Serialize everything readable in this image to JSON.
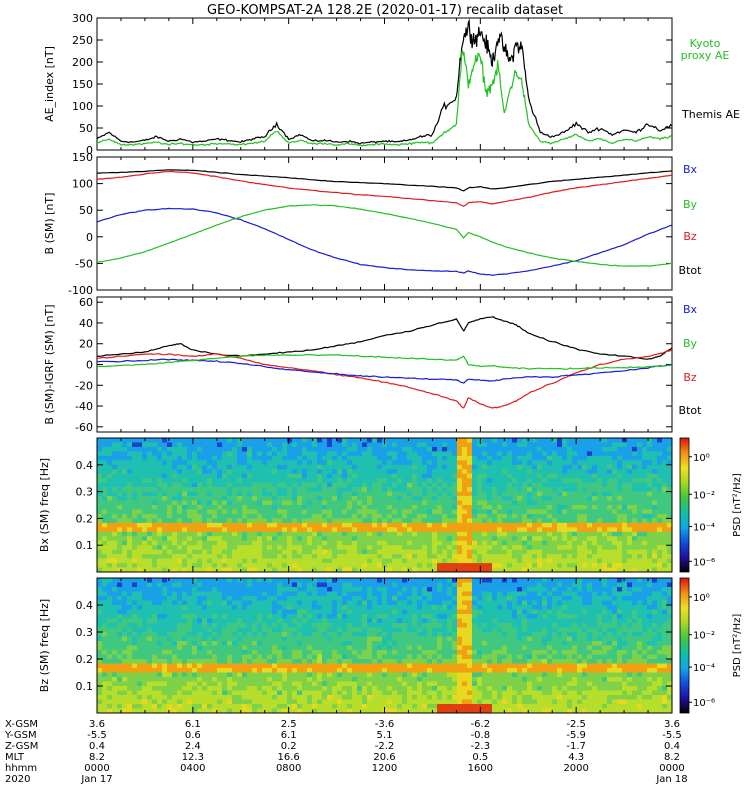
{
  "title": "GEO-KOMPSAT-2A 128.2E (2020-01-17) recalib dataset",
  "colors": {
    "black": "#000000",
    "green": "#22c022",
    "red": "#dd1c1c",
    "blue": "#1a1ad0",
    "spec_high": "#e01010",
    "spec_orange": "#f08a00",
    "spec_yellow": "#e8e020",
    "spec_green": "#50c850",
    "spec_teal": "#00a898",
    "spec_cyan": "#30b8e0"
  },
  "chart_data": [
    {
      "type": "line",
      "ylabel": "AE_index [nT]",
      "ylim": [
        0,
        300
      ],
      "yticks": [
        "300",
        "250",
        "200",
        "150",
        "100",
        "50",
        "0"
      ],
      "legend": [
        {
          "name": "Kyoto proxy AE",
          "color": "green"
        },
        {
          "name": "Themis AE",
          "color": "black"
        }
      ],
      "series": [
        {
          "name": "Themis AE",
          "color": "black",
          "x": [
            0,
            0.5,
            1,
            1.5,
            2,
            2.5,
            3,
            3.5,
            4,
            4.5,
            5,
            5.5,
            6,
            6.5,
            7,
            7.5,
            8,
            8.5,
            9,
            9.5,
            10,
            10.5,
            11,
            11.5,
            12,
            12.5,
            13,
            13.5,
            14,
            14.5,
            15,
            15.25,
            15.5,
            15.75,
            16,
            16.25,
            16.5,
            16.75,
            17,
            17.25,
            17.5,
            17.75,
            18,
            18.5,
            19,
            19.5,
            20,
            20.5,
            21,
            21.5,
            22,
            22.5,
            23,
            23.5,
            24
          ],
          "y": [
            25,
            40,
            20,
            18,
            22,
            30,
            20,
            25,
            18,
            20,
            25,
            22,
            18,
            25,
            30,
            60,
            25,
            35,
            20,
            22,
            18,
            20,
            15,
            18,
            20,
            18,
            22,
            30,
            35,
            100,
            120,
            250,
            280,
            250,
            270,
            240,
            200,
            260,
            230,
            200,
            240,
            230,
            120,
            40,
            30,
            40,
            60,
            40,
            50,
            35,
            45,
            40,
            60,
            45,
            55
          ]
        },
        {
          "name": "Kyoto proxy AE",
          "color": "green",
          "x": [
            0,
            0.5,
            1,
            1.5,
            2,
            2.5,
            3,
            3.5,
            4,
            4.5,
            5,
            5.5,
            6,
            6.5,
            7,
            7.5,
            8,
            8.5,
            9,
            9.5,
            10,
            10.5,
            11,
            11.5,
            12,
            12.5,
            13,
            13.5,
            14,
            14.5,
            15,
            15.25,
            15.5,
            15.75,
            16,
            16.25,
            16.5,
            16.75,
            17,
            17.25,
            17.5,
            17.75,
            18,
            18.5,
            19,
            19.5,
            20,
            20.5,
            21,
            21.5,
            22,
            22.5,
            23,
            23.5,
            24
          ],
          "y": [
            15,
            25,
            12,
            12,
            14,
            18,
            12,
            15,
            12,
            12,
            15,
            14,
            12,
            15,
            20,
            45,
            15,
            22,
            14,
            15,
            12,
            14,
            10,
            12,
            14,
            12,
            14,
            18,
            15,
            40,
            60,
            230,
            150,
            200,
            210,
            130,
            150,
            190,
            80,
            140,
            180,
            150,
            60,
            20,
            15,
            25,
            35,
            20,
            25,
            15,
            25,
            20,
            30,
            25,
            30
          ]
        }
      ]
    },
    {
      "type": "line",
      "ylabel": "B (SM) [nT]",
      "ylim": [
        -100,
        150
      ],
      "yticks": [
        "150",
        "100",
        "50",
        "0",
        "-50",
        "-100"
      ],
      "legend": [
        {
          "name": "Bx",
          "color": "blue"
        },
        {
          "name": "By",
          "color": "green"
        },
        {
          "name": "Bz",
          "color": "red"
        },
        {
          "name": "Btot",
          "color": "black"
        }
      ],
      "series": [
        {
          "name": "Btot",
          "color": "black",
          "x": [
            0,
            1,
            2,
            3,
            4,
            5,
            6,
            7,
            8,
            9,
            10,
            11,
            12,
            13,
            14,
            15,
            15.3,
            15.5,
            16,
            16.5,
            17,
            18,
            19,
            20,
            21,
            22,
            23,
            24
          ],
          "y": [
            120,
            121,
            123,
            126,
            125,
            121,
            117,
            114,
            111,
            107,
            104,
            102,
            100,
            97,
            95,
            92,
            86,
            92,
            94,
            90,
            92,
            98,
            104,
            108,
            112,
            116,
            120,
            124
          ]
        },
        {
          "name": "Bz",
          "color": "red",
          "x": [
            0,
            1,
            2,
            3,
            4,
            5,
            6,
            7,
            8,
            9,
            10,
            11,
            12,
            13,
            14,
            15,
            15.3,
            15.5,
            16,
            16.5,
            17,
            18,
            19,
            20,
            21,
            22,
            23,
            24
          ],
          "y": [
            108,
            112,
            118,
            123,
            120,
            113,
            105,
            98,
            92,
            87,
            83,
            79,
            76,
            72,
            68,
            64,
            57,
            64,
            66,
            62,
            66,
            74,
            84,
            92,
            98,
            104,
            110,
            116
          ]
        },
        {
          "name": "Bx",
          "color": "blue",
          "x": [
            0,
            1,
            2,
            3,
            4,
            5,
            6,
            7,
            8,
            9,
            10,
            11,
            12,
            13,
            14,
            15,
            15.3,
            15.5,
            16,
            16.5,
            17,
            18,
            19,
            20,
            21,
            22,
            23,
            24
          ],
          "y": [
            28,
            42,
            50,
            53,
            52,
            45,
            32,
            15,
            -5,
            -25,
            -40,
            -52,
            -58,
            -62,
            -64,
            -65,
            -68,
            -64,
            -70,
            -72,
            -70,
            -64,
            -55,
            -45,
            -30,
            -15,
            5,
            22
          ]
        },
        {
          "name": "By",
          "color": "green",
          "x": [
            0,
            1,
            2,
            3,
            4,
            5,
            6,
            7,
            8,
            9,
            10,
            11,
            12,
            13,
            14,
            15,
            15.3,
            15.5,
            16,
            16.5,
            17,
            18,
            19,
            20,
            21,
            22,
            23,
            24
          ],
          "y": [
            -48,
            -40,
            -28,
            -12,
            5,
            22,
            38,
            50,
            58,
            60,
            58,
            52,
            44,
            35,
            25,
            14,
            -2,
            8,
            0,
            -10,
            -18,
            -30,
            -40,
            -46,
            -52,
            -55,
            -55,
            -50
          ]
        }
      ]
    },
    {
      "type": "line",
      "ylabel": "B (SM)-IGRF (SM) [nT]",
      "ylim": [
        -65,
        65
      ],
      "yticks": [
        "60",
        "40",
        "20",
        "0",
        "-20",
        "-40",
        "-60"
      ],
      "legend": [
        {
          "name": "Bx",
          "color": "blue"
        },
        {
          "name": "By",
          "color": "green"
        },
        {
          "name": "Bz",
          "color": "red"
        },
        {
          "name": "Btot",
          "color": "black"
        }
      ],
      "series": [
        {
          "name": "Btot",
          "color": "black",
          "x": [
            0,
            1,
            2,
            3,
            3.5,
            4,
            5,
            6,
            7,
            8,
            9,
            10,
            11,
            12,
            13,
            14,
            15,
            15.3,
            15.5,
            16,
            16.5,
            17,
            17.5,
            18,
            19,
            20,
            21,
            22,
            23,
            23.5,
            24
          ],
          "y": [
            8,
            10,
            12,
            18,
            20,
            14,
            10,
            8,
            10,
            12,
            14,
            18,
            22,
            28,
            32,
            38,
            44,
            32,
            40,
            44,
            46,
            42,
            38,
            30,
            22,
            15,
            10,
            8,
            5,
            8,
            16
          ]
        },
        {
          "name": "Bz",
          "color": "red",
          "x": [
            0,
            1,
            2,
            3,
            4,
            5,
            6,
            7,
            8,
            9,
            10,
            11,
            12,
            13,
            14,
            15,
            15.3,
            15.5,
            16,
            16.5,
            17,
            17.5,
            18,
            19,
            20,
            21,
            22,
            23,
            24
          ],
          "y": [
            6,
            8,
            10,
            10,
            8,
            10,
            6,
            0,
            -3,
            -6,
            -10,
            -13,
            -17,
            -22,
            -28,
            -35,
            -42,
            -32,
            -38,
            -42,
            -40,
            -35,
            -28,
            -18,
            -8,
            0,
            5,
            8,
            14
          ]
        },
        {
          "name": "Bx",
          "color": "blue",
          "x": [
            0,
            1,
            2,
            3,
            4,
            5,
            6,
            7,
            8,
            9,
            10,
            11,
            12,
            13,
            14,
            15,
            15.3,
            15.5,
            16,
            16.5,
            17,
            18,
            19,
            20,
            21,
            22,
            23,
            24
          ],
          "y": [
            3,
            3,
            4,
            5,
            4,
            3,
            1,
            -2,
            -5,
            -7,
            -9,
            -11,
            -12,
            -13,
            -14,
            -15,
            -18,
            -14,
            -15,
            -16,
            -14,
            -12,
            -12,
            -10,
            -8,
            -6,
            -3,
            0
          ]
        },
        {
          "name": "By",
          "color": "green",
          "x": [
            0,
            1,
            2,
            3,
            4,
            5,
            6,
            7,
            8,
            9,
            10,
            11,
            12,
            13,
            14,
            15,
            15.3,
            15.5,
            16,
            16.5,
            17,
            18,
            19,
            20,
            21,
            22,
            23,
            24
          ],
          "y": [
            -2,
            -1,
            0,
            2,
            4,
            6,
            8,
            9,
            9,
            9,
            9,
            8,
            7,
            6,
            5,
            4,
            8,
            0,
            -2,
            -1,
            -3,
            -4,
            -4,
            -4,
            -3,
            -3,
            -2,
            -1
          ]
        }
      ]
    },
    {
      "type": "heatmap",
      "ylabel": "Bx (SM) freq [Hz]",
      "ylim": [
        0,
        0.5
      ],
      "yticks": [
        "0.4",
        "0.3",
        "0.2",
        "0.1"
      ],
      "colorbar_label": "PSD [nT²/Hz]",
      "colorbar_ticks": [
        "10⁰",
        "10⁻²",
        "10⁻⁴",
        "10⁻⁶"
      ],
      "features": {
        "line_freq": 0.167,
        "burst_hour": 15.3
      }
    },
    {
      "type": "heatmap",
      "ylabel": "Bz (SM) freq [Hz]",
      "ylim": [
        0,
        0.5
      ],
      "yticks": [
        "0.4",
        "0.3",
        "0.2",
        "0.1"
      ],
      "colorbar_label": "PSD [nT²/Hz]",
      "colorbar_ticks": [
        "10⁰",
        "10⁻²",
        "10⁻⁴",
        "10⁻⁶"
      ],
      "features": {
        "line_freq": 0.167,
        "burst_hour": 15.3
      }
    }
  ],
  "xaxis": {
    "row_labels": [
      "X-GSM",
      "Y-GSM",
      "Z-GSM",
      "MLT",
      "hhmm",
      "2020"
    ],
    "columns": [
      {
        "hour": 0,
        "values": [
          "3.6",
          "-5.5",
          "0.4",
          "8.2",
          "0000",
          "Jan 17"
        ]
      },
      {
        "hour": 4,
        "values": [
          "6.1",
          "0.6",
          "2.4",
          "12.3",
          "0400",
          ""
        ]
      },
      {
        "hour": 8,
        "values": [
          "2.5",
          "6.1",
          "0.2",
          "16.6",
          "0800",
          ""
        ]
      },
      {
        "hour": 12,
        "values": [
          "-3.6",
          "5.1",
          "-2.2",
          "20.6",
          "1200",
          ""
        ]
      },
      {
        "hour": 16,
        "values": [
          "-6.2",
          "-0.8",
          "-2.3",
          "0.5",
          "1600",
          ""
        ]
      },
      {
        "hour": 20,
        "values": [
          "-2.5",
          "-5.9",
          "-1.7",
          "4.3",
          "2000",
          ""
        ]
      },
      {
        "hour": 24,
        "values": [
          "3.6",
          "-5.5",
          "0.4",
          "8.2",
          "0000",
          "Jan 18"
        ]
      }
    ]
  }
}
